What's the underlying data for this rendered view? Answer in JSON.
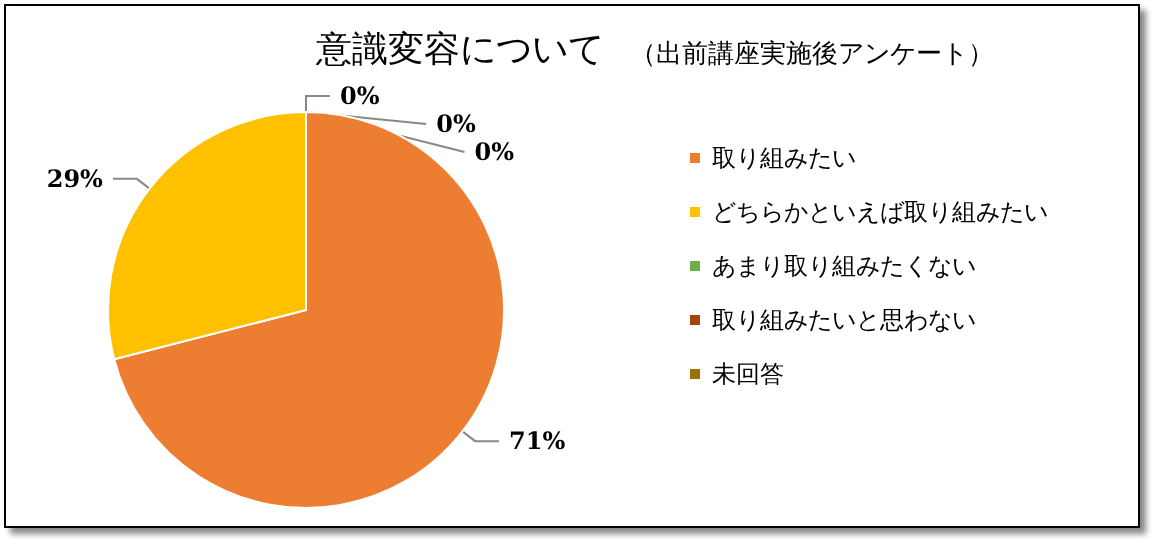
{
  "chart_data": {
    "type": "pie",
    "title": "意識変容について",
    "subtitle": "（出前講座実施後アンケート）",
    "categories": [
      "取り組みたい",
      "どちらかといえば取り組みたい",
      "あまり取り組みたくない",
      "取り組みたいと思わない",
      "未回答"
    ],
    "values": [
      71,
      29,
      0,
      0,
      0
    ],
    "colors": [
      "#ed7d31",
      "#ffc000",
      "#70ad47",
      "#9e480e",
      "#997300"
    ],
    "value_labels": [
      "71%",
      "29%",
      "0%",
      "0%",
      "0%"
    ],
    "legend": "right"
  }
}
